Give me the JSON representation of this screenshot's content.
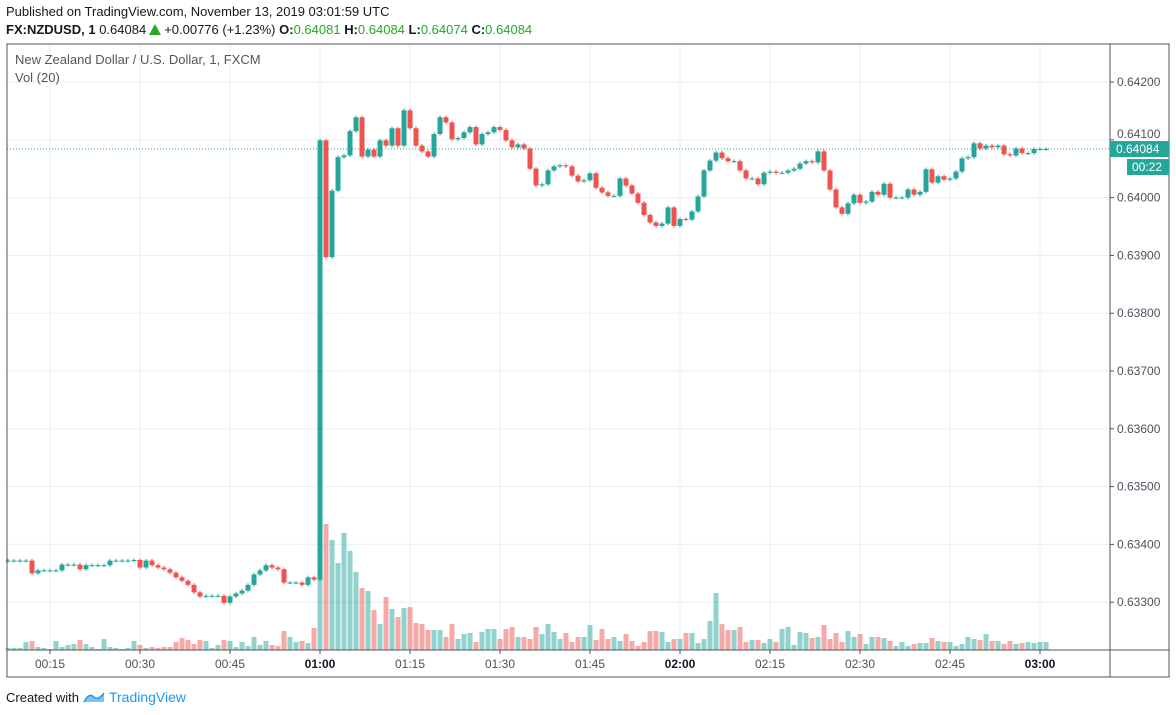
{
  "header": {
    "published": "Published on TradingView.com, November 13, 2019 03:01:59 UTC",
    "symbol": "FX:NZDUSD, 1",
    "last": "0.64084",
    "change": "+0.00776 (+1.23%)",
    "o_label": "O:",
    "o": "0.64081",
    "h_label": "H:",
    "h": "0.64084",
    "l_label": "L:",
    "l": "0.64074",
    "c_label": "C:",
    "c": "0.64084",
    "direction_icon": "triangle-up-icon"
  },
  "legend": {
    "title": "New Zealand Dollar / U.S. Dollar, 1, FXCM",
    "volume": "Vol (20)"
  },
  "price_badge": {
    "value": "0.64084",
    "countdown": "00:22"
  },
  "footer": {
    "created_with": "Created with",
    "brand": "TradingView"
  },
  "colors": {
    "up": "#26a69a",
    "down": "#ef5350",
    "grid": "#e9eff5",
    "text": "#4c525e"
  },
  "chart_data": {
    "type": "candlestick",
    "x_start": "00:08",
    "interval_minutes": 1,
    "y_ticks": [
      "0.64200",
      "0.64100",
      "0.64000",
      "0.63900",
      "0.63800",
      "0.63700",
      "0.63600",
      "0.63500",
      "0.63400",
      "0.63300"
    ],
    "x_ticks": [
      {
        "label": "00:15",
        "bold": false
      },
      {
        "label": "00:30",
        "bold": false
      },
      {
        "label": "00:45",
        "bold": false
      },
      {
        "label": "01:00",
        "bold": true
      },
      {
        "label": "01:15",
        "bold": false
      },
      {
        "label": "01:30",
        "bold": false
      },
      {
        "label": "01:45",
        "bold": false
      },
      {
        "label": "02:00",
        "bold": true
      },
      {
        "label": "02:15",
        "bold": false
      },
      {
        "label": "02:30",
        "bold": false
      },
      {
        "label": "02:45",
        "bold": false
      },
      {
        "label": "03:00",
        "bold": true
      }
    ],
    "ylim": [
      0.6322,
      0.6426
    ],
    "grid": true,
    "current_price": 0.64084,
    "close": [
      0.63372,
      0.63372,
      0.63372,
      0.63372,
      0.6335,
      0.63355,
      0.63355,
      0.63355,
      0.63355,
      0.63365,
      0.63365,
      0.63365,
      0.63357,
      0.63364,
      0.63364,
      0.63364,
      0.63364,
      0.63372,
      0.63372,
      0.63372,
      0.63372,
      0.63373,
      0.6336,
      0.63372,
      0.63364,
      0.6336,
      0.63357,
      0.63351,
      0.63343,
      0.63337,
      0.6333,
      0.63317,
      0.6331,
      0.63311,
      0.63311,
      0.63311,
      0.63299,
      0.6331,
      0.63315,
      0.6332,
      0.6333,
      0.63348,
      0.63355,
      0.63364,
      0.6336,
      0.63357,
      0.63334,
      0.63334,
      0.63334,
      0.6333,
      0.63343,
      0.63339,
      0.64099,
      0.63897,
      0.64012,
      0.6407,
      0.64073,
      0.64115,
      0.64139,
      0.64071,
      0.64083,
      0.64071,
      0.64099,
      0.6409,
      0.6412,
      0.6409,
      0.64151,
      0.6412,
      0.6409,
      0.6408,
      0.64071,
      0.6411,
      0.64139,
      0.6413,
      0.64101,
      0.64103,
      0.64113,
      0.64122,
      0.64092,
      0.6411,
      0.64113,
      0.64122,
      0.64117,
      0.64099,
      0.64087,
      0.64092,
      0.64085,
      0.6405,
      0.64021,
      0.64023,
      0.64047,
      0.64054,
      0.64056,
      0.64054,
      0.64038,
      0.64028,
      0.6403,
      0.64042,
      0.64017,
      0.64009,
      0.64003,
      0.64003,
      0.64033,
      0.64021,
      0.64007,
      0.63991,
      0.6397,
      0.63957,
      0.63951,
      0.63955,
      0.63983,
      0.63951,
      0.63963,
      0.63962,
      0.63976,
      0.64002,
      0.64047,
      0.64064,
      0.64078,
      0.64068,
      0.64063,
      0.64063,
      0.64047,
      0.64033,
      0.64033,
      0.64023,
      0.64043,
      0.64045,
      0.64043,
      0.64043,
      0.64047,
      0.6405,
      0.64059,
      0.64063,
      0.64061,
      0.6408,
      0.64047,
      0.64014,
      0.63983,
      0.63972,
      0.6399,
      0.64005,
      0.63991,
      0.63993,
      0.6401,
      0.64005,
      0.64024,
      0.64,
      0.64,
      0.64,
      0.64014,
      0.64005,
      0.6401,
      0.64049,
      0.64026,
      0.64037,
      0.64031,
      0.64033,
      0.64045,
      0.64068,
      0.6407,
      0.64094,
      0.64085,
      0.6409,
      0.64087,
      0.6409,
      0.64075,
      0.64073,
      0.64085,
      0.64077,
      0.64077,
      0.64084,
      0.64084,
      0.64084
    ],
    "volume": [
      2,
      2,
      2,
      8,
      9,
      3,
      2,
      1,
      9,
      3,
      5,
      6,
      10,
      6,
      3,
      1,
      11,
      3,
      2,
      1,
      2,
      9,
      5,
      2,
      3,
      2,
      3,
      3,
      8,
      12,
      10,
      6,
      10,
      9,
      2,
      5,
      10,
      9,
      3,
      8,
      4,
      13,
      5,
      9,
      5,
      4,
      19,
      13,
      8,
      9,
      7,
      22,
      130,
      126,
      110,
      87,
      117,
      99,
      78,
      62,
      59,
      40,
      26,
      53,
      41,
      33,
      42,
      43,
      27,
      26,
      20,
      20,
      20,
      13,
      26,
      11,
      16,
      17,
      8,
      18,
      21,
      21,
      11,
      21,
      23,
      13,
      13,
      11,
      23,
      16,
      26,
      18,
      11,
      17,
      8,
      13,
      13,
      25,
      10,
      21,
      11,
      13,
      9,
      16,
      9,
      4,
      8,
      19,
      19,
      18,
      8,
      11,
      11,
      17,
      17,
      7,
      11,
      29,
      57,
      26,
      20,
      20,
      23,
      8,
      10,
      10,
      7,
      11,
      8,
      21,
      23,
      5,
      18,
      17,
      12,
      13,
      25,
      11,
      17,
      8,
      19,
      13,
      16,
      6,
      13,
      13,
      12,
      9,
      4,
      8,
      4,
      6,
      7,
      7,
      12,
      9,
      8,
      8,
      4,
      6,
      13,
      11,
      10,
      16,
      9,
      9,
      6,
      9,
      6,
      7,
      8,
      7,
      8,
      8
    ]
  }
}
